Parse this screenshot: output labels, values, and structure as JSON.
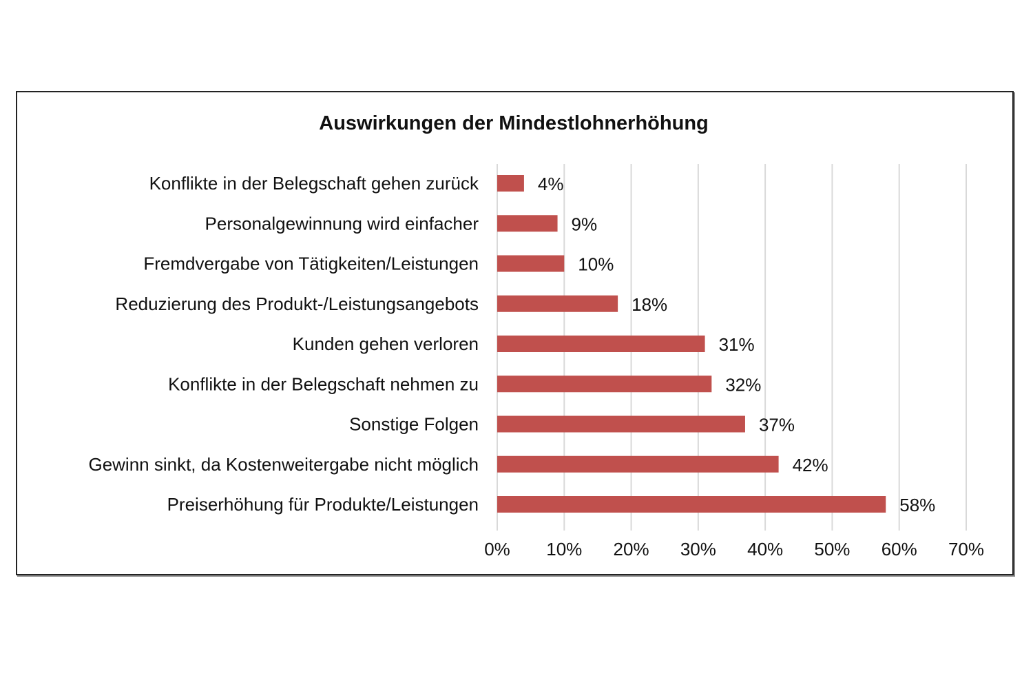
{
  "chart_data": {
    "type": "bar",
    "orientation": "horizontal",
    "title": "Auswirkungen der Mindestlohnerhöhung",
    "categories": [
      "Konflikte in der Belegschaft gehen zurück",
      "Personalgewinnung wird einfacher",
      "Fremdvergabe von Tätigkeiten/Leistungen",
      "Reduzierung des Produkt-/Leistungsangebots",
      "Kunden gehen verloren",
      "Konflikte in der Belegschaft nehmen zu",
      "Sonstige Folgen",
      "Gewinn sinkt, da Kostenweitergabe nicht möglich",
      "Preiserhöhung für Produkte/Leistungen"
    ],
    "values": [
      4,
      9,
      10,
      18,
      31,
      32,
      37,
      42,
      58
    ],
    "data_labels": [
      "4%",
      "9%",
      "10%",
      "18%",
      "31%",
      "32%",
      "37%",
      "42%",
      "58%"
    ],
    "xticks": [
      "0%",
      "10%",
      "20%",
      "30%",
      "40%",
      "50%",
      "60%",
      "70%"
    ],
    "xlim": [
      0,
      70
    ],
    "xlabel": "",
    "ylabel": "",
    "grid": "vertical",
    "bar_color": "#c0504d"
  }
}
